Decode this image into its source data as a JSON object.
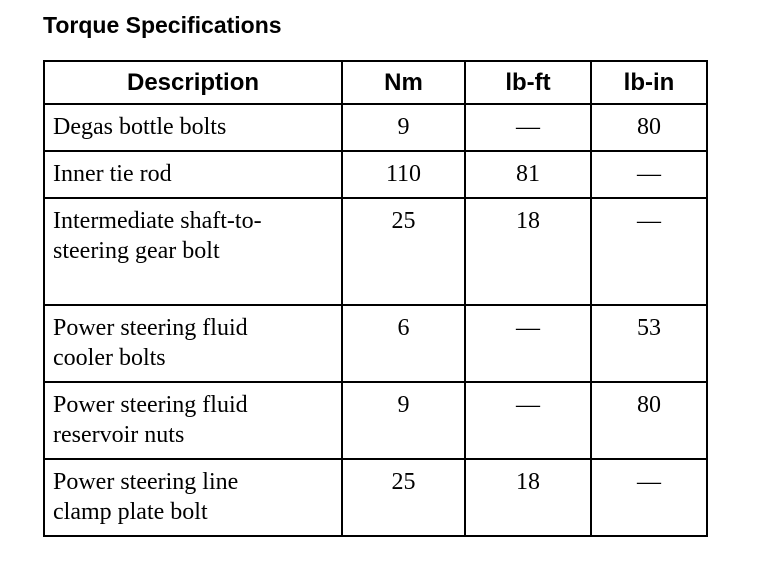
{
  "title": "Torque Specifications",
  "headers": [
    "Description",
    "Nm",
    "lb-ft",
    "lb-in"
  ],
  "rows": [
    [
      "Degas bottle bolts",
      "9",
      "—",
      "80"
    ],
    [
      "Inner tie rod",
      "110",
      "81",
      "—"
    ],
    [
      "Intermediate shaft-to-steering gear bolt",
      "25",
      "18",
      "—"
    ],
    [
      "Power steering fluid cooler bolts",
      "6",
      "—",
      "53"
    ],
    [
      "Power steering fluid reservoir nuts",
      "9",
      "—",
      "80"
    ],
    [
      "Power steering line clamp plate bolt",
      "25",
      "18",
      "—"
    ]
  ]
}
